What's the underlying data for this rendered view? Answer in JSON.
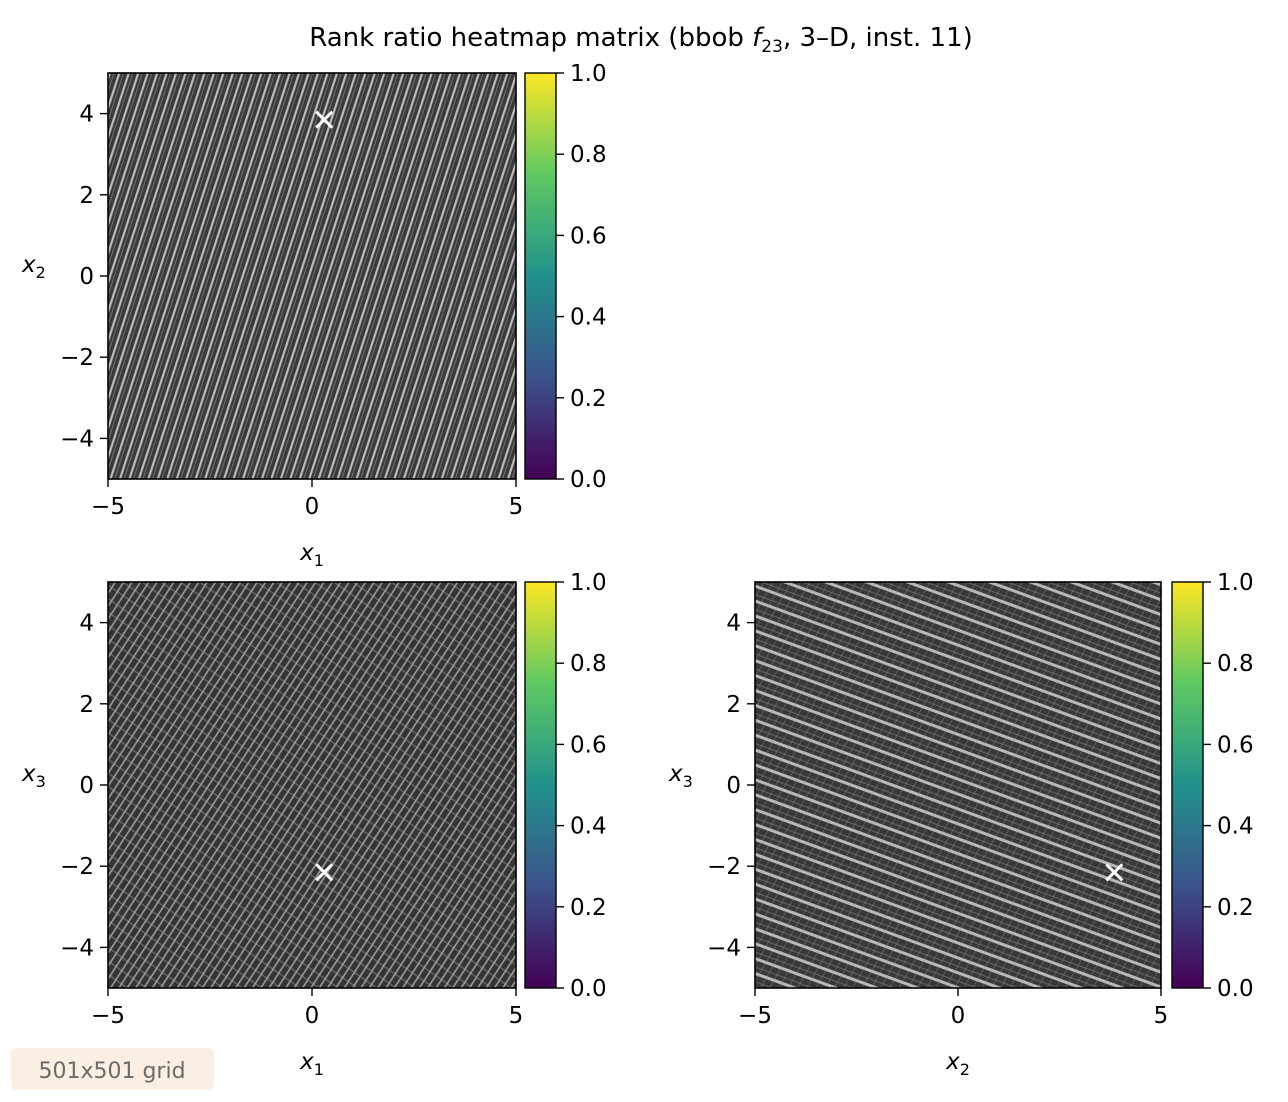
{
  "figure": {
    "title": "Rank ratio heatmap matrix (bbob f23, 3–D, inst. 11)",
    "title_parts": {
      "prefix": "Rank ratio heatmap matrix (bbob ",
      "fname": "f",
      "fsub": "23",
      "suffix": ", 3–D, inst. 11)"
    },
    "grid_note": "501x501 grid",
    "colors": {
      "background_dark": "#3a3a3a",
      "stripe_light": "#cfcfcf",
      "marker": "#ffffff",
      "badge_bg": "#fbeee2",
      "colormap": [
        "#440154",
        "#3b528b",
        "#21918c",
        "#5ec962",
        "#fde725"
      ]
    }
  },
  "chart_data": [
    {
      "type": "heatmap",
      "panel": "x1-x2",
      "xlabel": {
        "base": "x",
        "sub": "1"
      },
      "ylabel": {
        "base": "x",
        "sub": "2"
      },
      "xlim": [
        -5,
        5
      ],
      "ylim": [
        -5,
        5
      ],
      "xticks": [
        -5,
        0,
        5
      ],
      "yticks": [
        -4,
        -2,
        0,
        2,
        4
      ],
      "tick_labels_x": [
        "−5",
        "0",
        "5"
      ],
      "tick_labels_y": [
        "−4",
        "−2",
        "0",
        "2",
        "4"
      ],
      "optimum": {
        "x": 0.3,
        "y": 3.85
      },
      "pattern": "steep diagonal stripes",
      "colorbar": {
        "range": [
          0,
          1
        ],
        "ticks": [
          "0.0",
          "0.2",
          "0.4",
          "0.6",
          "0.8",
          "1.0"
        ]
      }
    },
    {
      "type": "heatmap",
      "panel": "x1-x3",
      "xlabel": {
        "base": "x",
        "sub": "1"
      },
      "ylabel": {
        "base": "x",
        "sub": "3"
      },
      "xlim": [
        -5,
        5
      ],
      "ylim": [
        -5,
        5
      ],
      "xticks": [
        -5,
        0,
        5
      ],
      "yticks": [
        -4,
        -2,
        0,
        2,
        4
      ],
      "tick_labels_x": [
        "−5",
        "0",
        "5"
      ],
      "tick_labels_y": [
        "−4",
        "−2",
        "0",
        "2",
        "4"
      ],
      "optimum": {
        "x": 0.3,
        "y": -2.15
      },
      "pattern": "fine crossing diagonal stripes",
      "colorbar": {
        "range": [
          0,
          1
        ],
        "ticks": [
          "0.0",
          "0.2",
          "0.4",
          "0.6",
          "0.8",
          "1.0"
        ]
      }
    },
    {
      "type": "heatmap",
      "panel": "x2-x3",
      "xlabel": {
        "base": "x",
        "sub": "2"
      },
      "ylabel": {
        "base": "x",
        "sub": "3"
      },
      "xlim": [
        -5,
        5
      ],
      "ylim": [
        -5,
        5
      ],
      "xticks": [
        -5,
        0,
        5
      ],
      "yticks": [
        -4,
        -2,
        0,
        2,
        4
      ],
      "tick_labels_x": [
        "−5",
        "0",
        "5"
      ],
      "tick_labels_y": [
        "−4",
        "−2",
        "0",
        "2",
        "4"
      ],
      "optimum": {
        "x": 3.85,
        "y": -2.15
      },
      "pattern": "shallow diagonal stripes",
      "colorbar": {
        "range": [
          0,
          1
        ],
        "ticks": [
          "0.0",
          "0.2",
          "0.4",
          "0.6",
          "0.8",
          "1.0"
        ]
      }
    }
  ]
}
